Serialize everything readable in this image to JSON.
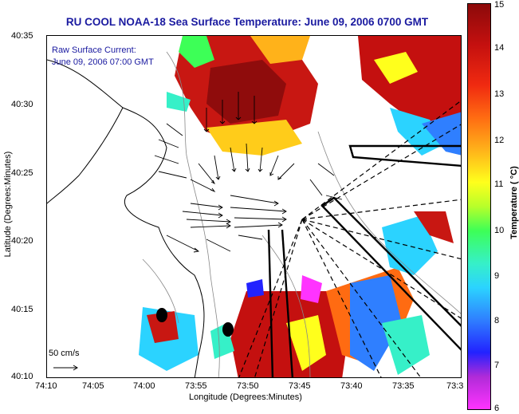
{
  "title": "RU COOL  NOAA-18  Sea Surface Temperature:  June 09, 2006 0700 GMT",
  "map": {
    "legend_label": "Raw Surface Current:",
    "legend_time": "June 09, 2006 07:00 GMT",
    "scale_label": "50 cm/s",
    "y_ticks": [
      "40:35",
      "40:30",
      "40:25",
      "40:20",
      "40:15",
      "40:10"
    ],
    "x_ticks": [
      "74:10",
      "74:05",
      "74:00",
      "73:55",
      "73:50",
      "73:45",
      "73:40",
      "73:35",
      "73:3"
    ],
    "xlabel": "Longitude (Degrees:Minutes)",
    "ylabel": "Latitude (Degrees:Minutes)"
  },
  "colorbar": {
    "label": "Temperature ( °C)",
    "ticks": [
      "15",
      "14",
      "13",
      "12",
      "11",
      "10",
      "9",
      "8",
      "7",
      "6"
    ]
  },
  "colors": {
    "title": "#1a1aa0",
    "legend_text": "#1a1aa0"
  }
}
